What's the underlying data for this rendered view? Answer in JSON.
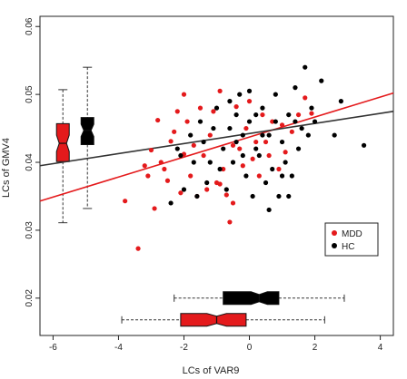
{
  "chart_data": {
    "type": "scatter",
    "title": "",
    "xlabel": "LCs of VAR9",
    "ylabel": "LCs of GMV4",
    "xlim": [
      -6.4,
      4.4
    ],
    "ylim": [
      0.0145,
      0.0615
    ],
    "xticks": [
      -6,
      -4,
      -2,
      0,
      2,
      4
    ],
    "xtick_labels": [
      "-6",
      "-4",
      "-2",
      "0",
      "2",
      "4"
    ],
    "yticks": [
      0.02,
      0.03,
      0.04,
      0.05,
      0.06
    ],
    "ytick_labels": [
      "0.02",
      "0.03",
      "0.04",
      "0.05",
      "0.06"
    ],
    "grid": false,
    "legend": {
      "position": "right",
      "entries": [
        "MDD",
        "HC"
      ]
    },
    "series": [
      {
        "name": "MDD",
        "color": "#e41a1c",
        "points": [
          [
            -3.4,
            0.0273
          ],
          [
            -3.8,
            0.0343
          ],
          [
            -2.9,
            0.0332
          ],
          [
            -2.5,
            0.0373
          ],
          [
            -2.1,
            0.0355
          ],
          [
            -2.7,
            0.04
          ],
          [
            -3.0,
            0.0418
          ],
          [
            -3.2,
            0.0395
          ],
          [
            -2.4,
            0.0431
          ],
          [
            -2.8,
            0.0462
          ],
          [
            -2.2,
            0.0475
          ],
          [
            -2.0,
            0.05
          ],
          [
            -1.8,
            0.038
          ],
          [
            -1.6,
            0.035
          ],
          [
            -1.4,
            0.041
          ],
          [
            -1.2,
            0.044
          ],
          [
            -1.0,
            0.037
          ],
          [
            -0.8,
            0.039
          ],
          [
            -0.6,
            0.0312
          ],
          [
            -0.5,
            0.034
          ],
          [
            -0.3,
            0.042
          ],
          [
            -0.1,
            0.045
          ],
          [
            0.1,
            0.0405
          ],
          [
            0.3,
            0.038
          ],
          [
            0.5,
            0.043
          ],
          [
            0.7,
            0.046
          ],
          [
            0.9,
            0.039
          ],
          [
            1.1,
            0.0415
          ],
          [
            1.3,
            0.0445
          ],
          [
            1.5,
            0.047
          ],
          [
            -1.9,
            0.046
          ],
          [
            -1.1,
            0.0475
          ],
          [
            -0.9,
            0.0505
          ],
          [
            -0.4,
            0.0482
          ],
          [
            0.0,
            0.049
          ],
          [
            0.4,
            0.047
          ],
          [
            -2.6,
            0.039
          ],
          [
            -1.3,
            0.036
          ],
          [
            -0.7,
            0.0352
          ],
          [
            -1.7,
            0.0425
          ],
          [
            -2.3,
            0.0445
          ],
          [
            -0.2,
            0.0395
          ],
          [
            0.6,
            0.041
          ],
          [
            1.0,
            0.0455
          ],
          [
            1.7,
            0.0495
          ],
          [
            -1.5,
            0.048
          ],
          [
            -0.9,
            0.0368
          ],
          [
            0.2,
            0.043
          ],
          [
            -3.1,
            0.038
          ],
          [
            -2.0,
            0.0412
          ],
          [
            1.9,
            0.0472
          ],
          [
            -0.5,
            0.0425
          ]
        ]
      },
      {
        "name": "HC",
        "color": "#000000",
        "points": [
          [
            -2.2,
            0.042
          ],
          [
            -1.8,
            0.044
          ],
          [
            -1.5,
            0.046
          ],
          [
            -1.2,
            0.04
          ],
          [
            -1.0,
            0.048
          ],
          [
            -0.8,
            0.042
          ],
          [
            -0.6,
            0.045
          ],
          [
            -0.4,
            0.047
          ],
          [
            -0.2,
            0.044
          ],
          [
            0.0,
            0.046
          ],
          [
            0.2,
            0.042
          ],
          [
            0.4,
            0.048
          ],
          [
            0.6,
            0.044
          ],
          [
            0.8,
            0.046
          ],
          [
            1.0,
            0.043
          ],
          [
            1.2,
            0.047
          ],
          [
            1.4,
            0.051
          ],
          [
            1.6,
            0.045
          ],
          [
            -0.9,
            0.039
          ],
          [
            -0.5,
            0.04
          ],
          [
            -0.1,
            0.038
          ],
          [
            0.3,
            0.041
          ],
          [
            0.7,
            0.039
          ],
          [
            1.1,
            0.04
          ],
          [
            -1.3,
            0.037
          ],
          [
            -0.7,
            0.036
          ],
          [
            0.1,
            0.035
          ],
          [
            0.5,
            0.037
          ],
          [
            0.9,
            0.035
          ],
          [
            1.3,
            0.038
          ],
          [
            -1.6,
            0.035
          ],
          [
            -2.0,
            0.036
          ],
          [
            -2.4,
            0.034
          ],
          [
            1.5,
            0.042
          ],
          [
            1.8,
            0.044
          ],
          [
            2.2,
            0.052
          ],
          [
            2.8,
            0.049
          ],
          [
            3.5,
            0.0425
          ],
          [
            2.6,
            0.044
          ],
          [
            1.7,
            0.054
          ],
          [
            1.9,
            0.048
          ],
          [
            2.0,
            0.046
          ],
          [
            0.0,
            0.0505
          ],
          [
            -0.3,
            0.05
          ],
          [
            -0.6,
            0.049
          ],
          [
            -1.1,
            0.045
          ],
          [
            -1.4,
            0.043
          ],
          [
            0.8,
            0.05
          ],
          [
            0.4,
            0.044
          ],
          [
            -0.2,
            0.041
          ],
          [
            1.0,
            0.038
          ],
          [
            0.6,
            0.033
          ],
          [
            -1.7,
            0.04
          ],
          [
            -2.1,
            0.041
          ],
          [
            1.2,
            0.035
          ],
          [
            -0.4,
            0.043
          ],
          [
            0.2,
            0.047
          ],
          [
            1.4,
            0.046
          ]
        ]
      }
    ],
    "regression_lines": [
      {
        "name": "MDD",
        "color": "#e41a1c",
        "x": [
          -6.4,
          4.4
        ],
        "y": [
          0.0343,
          0.0502
        ]
      },
      {
        "name": "HC",
        "color": "#333333",
        "x": [
          -6.4,
          4.4
        ],
        "y": [
          0.0395,
          0.0475
        ]
      }
    ],
    "boxplots": {
      "y_axis": [
        {
          "group": "MDD",
          "color": "#e41a1c",
          "x_center": -5.7,
          "min": 0.0311,
          "q1": 0.0401,
          "median": 0.0428,
          "q3": 0.0457,
          "max": 0.0507,
          "notch": [
            0.0416,
            0.044
          ]
        },
        {
          "group": "HC",
          "color": "#000000",
          "x_center": -4.95,
          "min": 0.0332,
          "q1": 0.0426,
          "median": 0.0447,
          "q3": 0.0466,
          "max": 0.054,
          "notch": [
            0.0438,
            0.0456
          ]
        }
      ],
      "x_axis": [
        {
          "group": "HC",
          "color": "#000000",
          "y_center": 0.02,
          "min": -2.3,
          "q1": -0.8,
          "median": 0.3,
          "q3": 0.9,
          "max": 2.9,
          "notch": [
            0.05,
            0.55
          ]
        },
        {
          "group": "MDD",
          "color": "#e41a1c",
          "y_center": 0.0168,
          "min": -3.9,
          "q1": -2.1,
          "median": -1.0,
          "q3": -0.1,
          "max": 2.3,
          "notch": [
            -1.3,
            -0.7
          ]
        }
      ]
    }
  }
}
